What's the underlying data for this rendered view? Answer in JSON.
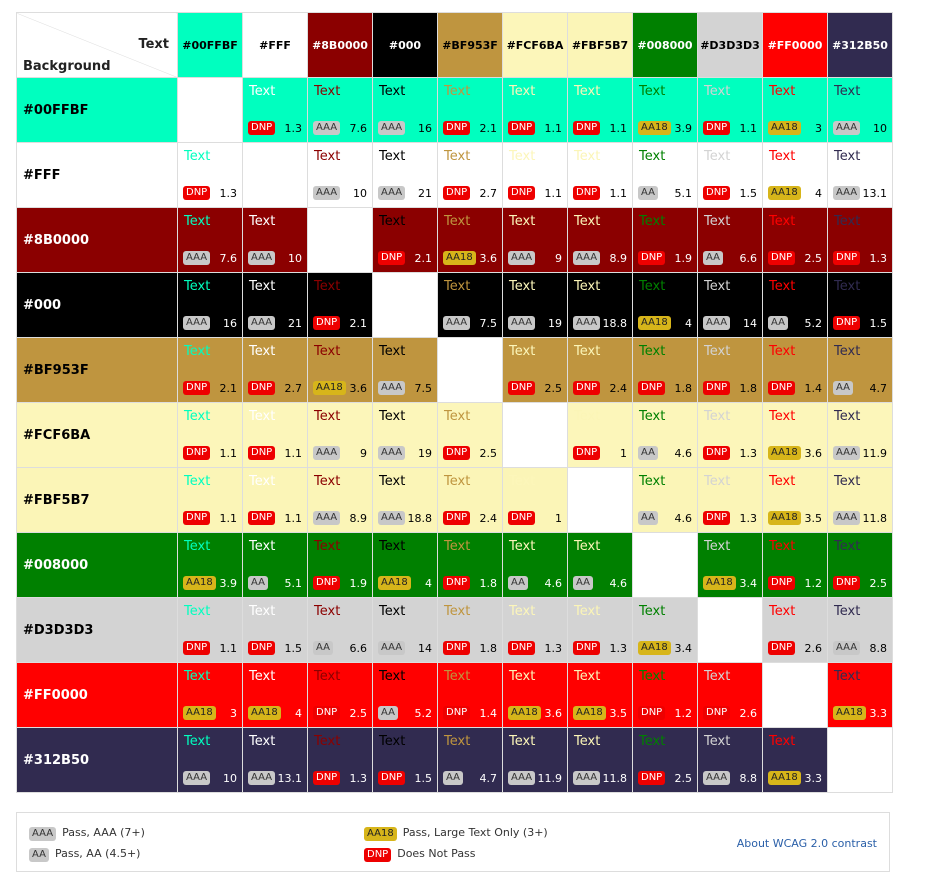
{
  "corner": {
    "text_label": "Text",
    "background_label": "Background"
  },
  "colors": [
    "#00FFBF",
    "#FFF",
    "#8B0000",
    "#000",
    "#BF953F",
    "#FCF6BA",
    "#FBF5B7",
    "#008000",
    "#D3D3D3",
    "#FF0000",
    "#312B50"
  ],
  "header_text_colors": [
    "#000",
    "#000",
    "#fff",
    "#fff",
    "#000",
    "#000",
    "#000",
    "#fff",
    "#000",
    "#fff",
    "#fff"
  ],
  "sample_text": "Text",
  "matrix": [
    [
      null,
      [
        "DNP",
        1.3
      ],
      [
        "AAA",
        7.6
      ],
      [
        "AAA",
        16
      ],
      [
        "DNP",
        2.1
      ],
      [
        "DNP",
        1.1
      ],
      [
        "DNP",
        1.1
      ],
      [
        "AA18",
        3.9
      ],
      [
        "DNP",
        1.1
      ],
      [
        "AA18",
        3
      ],
      [
        "AAA",
        10
      ]
    ],
    [
      [
        "DNP",
        1.3
      ],
      null,
      [
        "AAA",
        10
      ],
      [
        "AAA",
        21
      ],
      [
        "DNP",
        2.7
      ],
      [
        "DNP",
        1.1
      ],
      [
        "DNP",
        1.1
      ],
      [
        "AA",
        5.1
      ],
      [
        "DNP",
        1.5
      ],
      [
        "AA18",
        4
      ],
      [
        "AAA",
        13.1
      ]
    ],
    [
      [
        "AAA",
        7.6
      ],
      [
        "AAA",
        10
      ],
      null,
      [
        "DNP",
        2.1
      ],
      [
        "AA18",
        3.6
      ],
      [
        "AAA",
        9
      ],
      [
        "AAA",
        8.9
      ],
      [
        "DNP",
        1.9
      ],
      [
        "AA",
        6.6
      ],
      [
        "DNP",
        2.5
      ],
      [
        "DNP",
        1.3
      ]
    ],
    [
      [
        "AAA",
        16
      ],
      [
        "AAA",
        21
      ],
      [
        "DNP",
        2.1
      ],
      null,
      [
        "AAA",
        7.5
      ],
      [
        "AAA",
        19
      ],
      [
        "AAA",
        18.8
      ],
      [
        "AA18",
        4
      ],
      [
        "AAA",
        14
      ],
      [
        "AA",
        5.2
      ],
      [
        "DNP",
        1.5
      ]
    ],
    [
      [
        "DNP",
        2.1
      ],
      [
        "DNP",
        2.7
      ],
      [
        "AA18",
        3.6
      ],
      [
        "AAA",
        7.5
      ],
      null,
      [
        "DNP",
        2.5
      ],
      [
        "DNP",
        2.4
      ],
      [
        "DNP",
        1.8
      ],
      [
        "DNP",
        1.8
      ],
      [
        "DNP",
        1.4
      ],
      [
        "AA",
        4.7
      ]
    ],
    [
      [
        "DNP",
        1.1
      ],
      [
        "DNP",
        1.1
      ],
      [
        "AAA",
        9
      ],
      [
        "AAA",
        19
      ],
      [
        "DNP",
        2.5
      ],
      null,
      [
        "DNP",
        1
      ],
      [
        "AA",
        4.6
      ],
      [
        "DNP",
        1.3
      ],
      [
        "AA18",
        3.6
      ],
      [
        "AAA",
        11.9
      ]
    ],
    [
      [
        "DNP",
        1.1
      ],
      [
        "DNP",
        1.1
      ],
      [
        "AAA",
        8.9
      ],
      [
        "AAA",
        18.8
      ],
      [
        "DNP",
        2.4
      ],
      [
        "DNP",
        1
      ],
      null,
      [
        "AA",
        4.6
      ],
      [
        "DNP",
        1.3
      ],
      [
        "AA18",
        3.5
      ],
      [
        "AAA",
        11.8
      ]
    ],
    [
      [
        "AA18",
        3.9
      ],
      [
        "AA",
        5.1
      ],
      [
        "DNP",
        1.9
      ],
      [
        "AA18",
        4
      ],
      [
        "DNP",
        1.8
      ],
      [
        "AA",
        4.6
      ],
      [
        "AA",
        4.6
      ],
      null,
      [
        "AA18",
        3.4
      ],
      [
        "DNP",
        1.2
      ],
      [
        "DNP",
        2.5
      ]
    ],
    [
      [
        "DNP",
        1.1
      ],
      [
        "DNP",
        1.5
      ],
      [
        "AA",
        6.6
      ],
      [
        "AAA",
        14
      ],
      [
        "DNP",
        1.8
      ],
      [
        "DNP",
        1.3
      ],
      [
        "DNP",
        1.3
      ],
      [
        "AA18",
        3.4
      ],
      null,
      [
        "DNP",
        2.6
      ],
      [
        "AAA",
        8.8
      ]
    ],
    [
      [
        "AA18",
        3
      ],
      [
        "AA18",
        4
      ],
      [
        "DNP",
        2.5
      ],
      [
        "AA",
        5.2
      ],
      [
        "DNP",
        1.4
      ],
      [
        "AA18",
        3.6
      ],
      [
        "AA18",
        3.5
      ],
      [
        "DNP",
        1.2
      ],
      [
        "DNP",
        2.6
      ],
      null,
      [
        "AA18",
        3.3
      ]
    ],
    [
      [
        "AAA",
        10
      ],
      [
        "AAA",
        13.1
      ],
      [
        "DNP",
        1.3
      ],
      [
        "DNP",
        1.5
      ],
      [
        "AA",
        4.7
      ],
      [
        "AAA",
        11.9
      ],
      [
        "AAA",
        11.8
      ],
      [
        "DNP",
        2.5
      ],
      [
        "AAA",
        8.8
      ],
      [
        "AA18",
        3.3
      ],
      null
    ]
  ],
  "legend": {
    "items": [
      {
        "badge": "AAA",
        "label": "Pass, AAA (7+)"
      },
      {
        "badge": "AA",
        "label": "Pass, AA (4.5+)"
      },
      {
        "badge": "AA18",
        "label": "Pass, Large Text Only (3+)"
      },
      {
        "badge": "DNP",
        "label": "Does Not Pass"
      }
    ],
    "about_link": "About WCAG 2.0 contrast"
  }
}
